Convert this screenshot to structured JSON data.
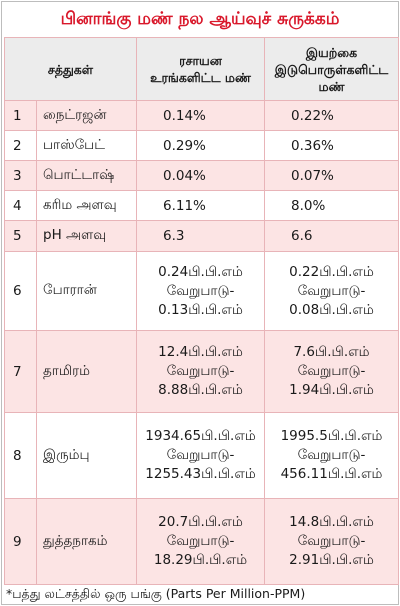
{
  "title": "பினாங்கு மண் நல ஆய்வுச் சுருக்கம்",
  "headers": {
    "nutrients": "சத்துகள்",
    "chemical": "ரசாயன உரங்களிட்ட மண்",
    "organic": "இயற்கை இடுபொருள்களிட்ட மண்"
  },
  "rows": [
    {
      "num": "1",
      "name": "நைட்ரஜன்",
      "chemical": "0.14%",
      "organic": "0.22%"
    },
    {
      "num": "2",
      "name": "பாஸ்பேட்",
      "chemical": "0.29%",
      "organic": "0.36%"
    },
    {
      "num": "3",
      "name": "பொட்டாஷ்",
      "chemical": "0.04%",
      "organic": "0.07%"
    },
    {
      "num": "4",
      "name": "கரிம அளவு",
      "chemical": "6.11%",
      "organic": "8.0%"
    },
    {
      "num": "5",
      "name": "pH அளவு",
      "chemical": "6.3",
      "organic": "6.6"
    },
    {
      "num": "6",
      "name": "போரான்",
      "chemical": [
        "0.24பி.பி.எம்",
        "வேறுபாடு-",
        "0.13பி.பி.எம்"
      ],
      "organic": [
        "0.22பி.பி.எம்",
        "வேறுபாடு-",
        "0.08பி.பி.எம்"
      ]
    },
    {
      "num": "7",
      "name": "தாமிரம்",
      "chemical": [
        "12.4பி.பி.எம்",
        "வேறுபாடு-",
        "8.88பி.பி.எம்"
      ],
      "organic": [
        "7.6பி.பி.எம்",
        "வேறுபாடு-",
        "1.94பி.பி.எம்"
      ]
    },
    {
      "num": "8",
      "name": "இரும்பு",
      "chemical": [
        "1934.65பி.பி.எம்",
        "வேறுபாடு-",
        "1255.43பி.பி.எம்"
      ],
      "organic": [
        "1995.5பி.பி.எம்",
        "வேறுபாடு-",
        "456.11பி.பி.எம்"
      ]
    },
    {
      "num": "9",
      "name": "துத்தநாகம்",
      "chemical": [
        "20.7பி.பி.எம்",
        "வேறுபாடு-",
        "18.29பி.பி.எம்"
      ],
      "organic": [
        "14.8பி.பி.எம்",
        "வேறுபாடு-",
        "2.91பி.பி.எம்"
      ]
    }
  ],
  "footnote": "*பத்து லட்சத்தில் ஒரு பங்கு (Parts Per Million-PPM)",
  "colors": {
    "title": "#d9182b",
    "row_odd": "#fce4e4",
    "row_even": "#ffffff",
    "header_bg": "#ececec",
    "border": "#e8b4b8"
  }
}
